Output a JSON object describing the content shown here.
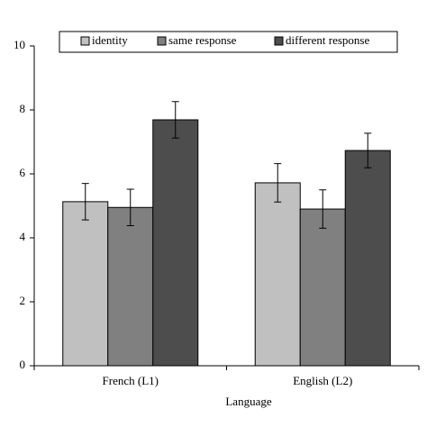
{
  "chart_data": {
    "type": "bar",
    "x_label": "Language",
    "categories": [
      "French (L1)",
      "English (L2)"
    ],
    "series": [
      {
        "name": "identity",
        "color": "#c0c0c0",
        "values": [
          5.13,
          5.72
        ],
        "errors": [
          0.57,
          0.6
        ]
      },
      {
        "name": "same response",
        "color": "#808080",
        "values": [
          4.95,
          4.9
        ],
        "errors": [
          0.57,
          0.6
        ]
      },
      {
        "name": "different response",
        "color": "#4d4d4d",
        "values": [
          7.69,
          6.73
        ],
        "errors": [
          0.57,
          0.54
        ]
      }
    ],
    "ylim": [
      0,
      10
    ],
    "yticks": [
      0,
      2,
      4,
      6,
      8,
      10
    ],
    "grid": false
  }
}
